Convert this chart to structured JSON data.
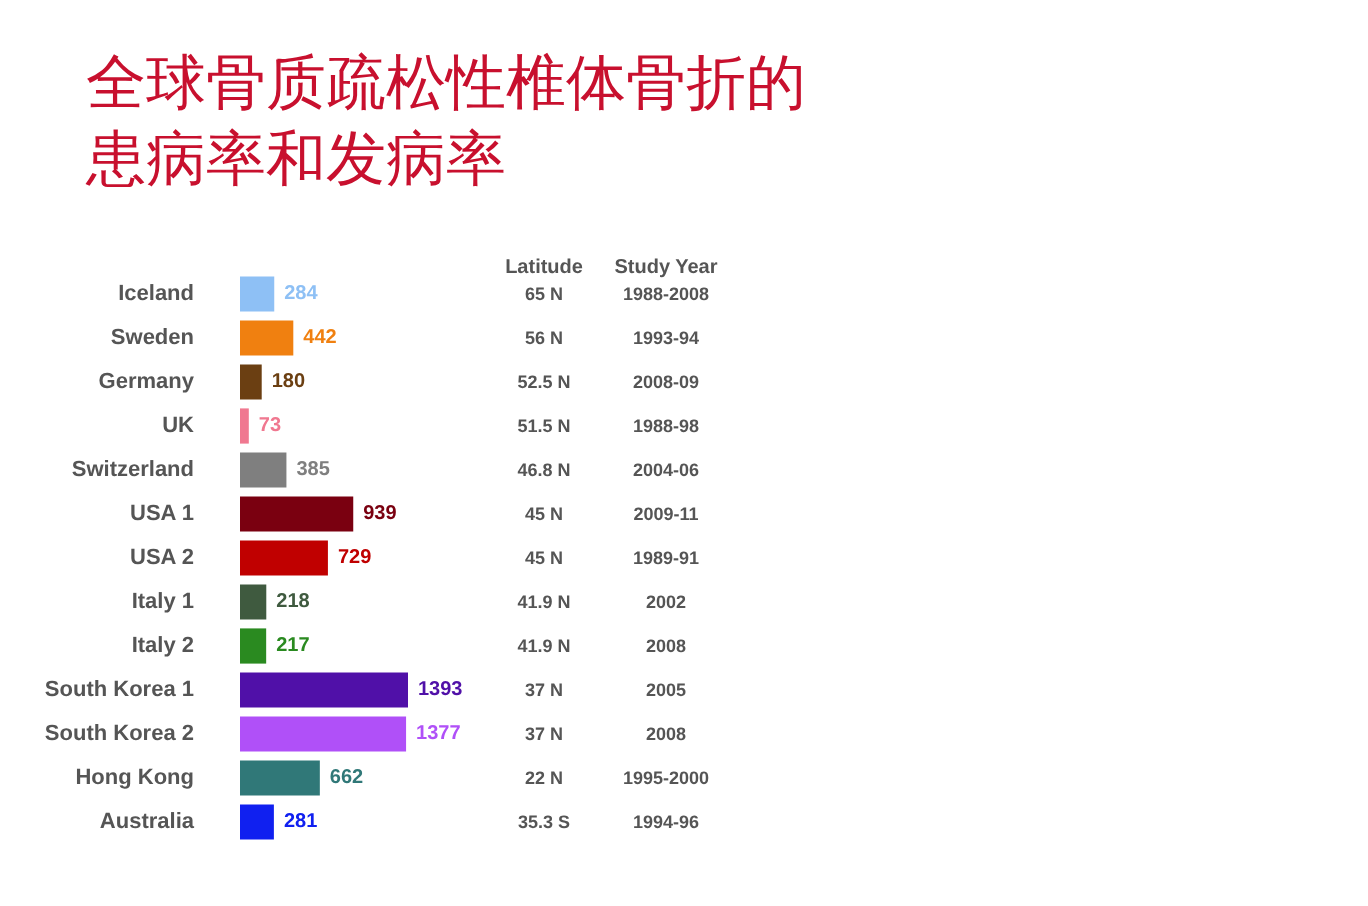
{
  "chart_data": {
    "type": "bar",
    "orientation": "horizontal",
    "title": "全球骨质疏松性椎体骨折的患病率和发病率",
    "categories": [
      "Iceland",
      "Sweden",
      "Germany",
      "UK",
      "Switzerland",
      "USA 1",
      "USA 2",
      "Italy 1",
      "Italy 2",
      "South Korea 1",
      "South Korea 2",
      "Hong Kong",
      "Australia"
    ],
    "values": [
      284,
      442,
      180,
      73,
      385,
      939,
      729,
      218,
      217,
      1393,
      1377,
      662,
      281
    ],
    "colors": [
      "#8ec0f5",
      "#f08010",
      "#6b3f12",
      "#f07890",
      "#7f7f7f",
      "#7a0010",
      "#c00000",
      "#3f5a3f",
      "#2a8a20",
      "#5010a8",
      "#b050f8",
      "#307878",
      "#1020f0"
    ],
    "data_labels": true,
    "annotations": [
      "Latitude",
      "Study Year",
      "65 N",
      "1988-2008",
      "56 N",
      "1993-94",
      "52.5 N",
      "2008-09",
      "51.5 N",
      "1988-98",
      "46.8 N",
      "2004-06",
      "45 N",
      "2009-11",
      "45 N",
      "1989-91",
      "41.9 N",
      "2002",
      "41.9 N",
      "2008",
      "37 N",
      "2005",
      "37 N",
      "2008",
      "22 N",
      "1995-2000",
      "35.3 S",
      "1994-96"
    ]
  }
}
